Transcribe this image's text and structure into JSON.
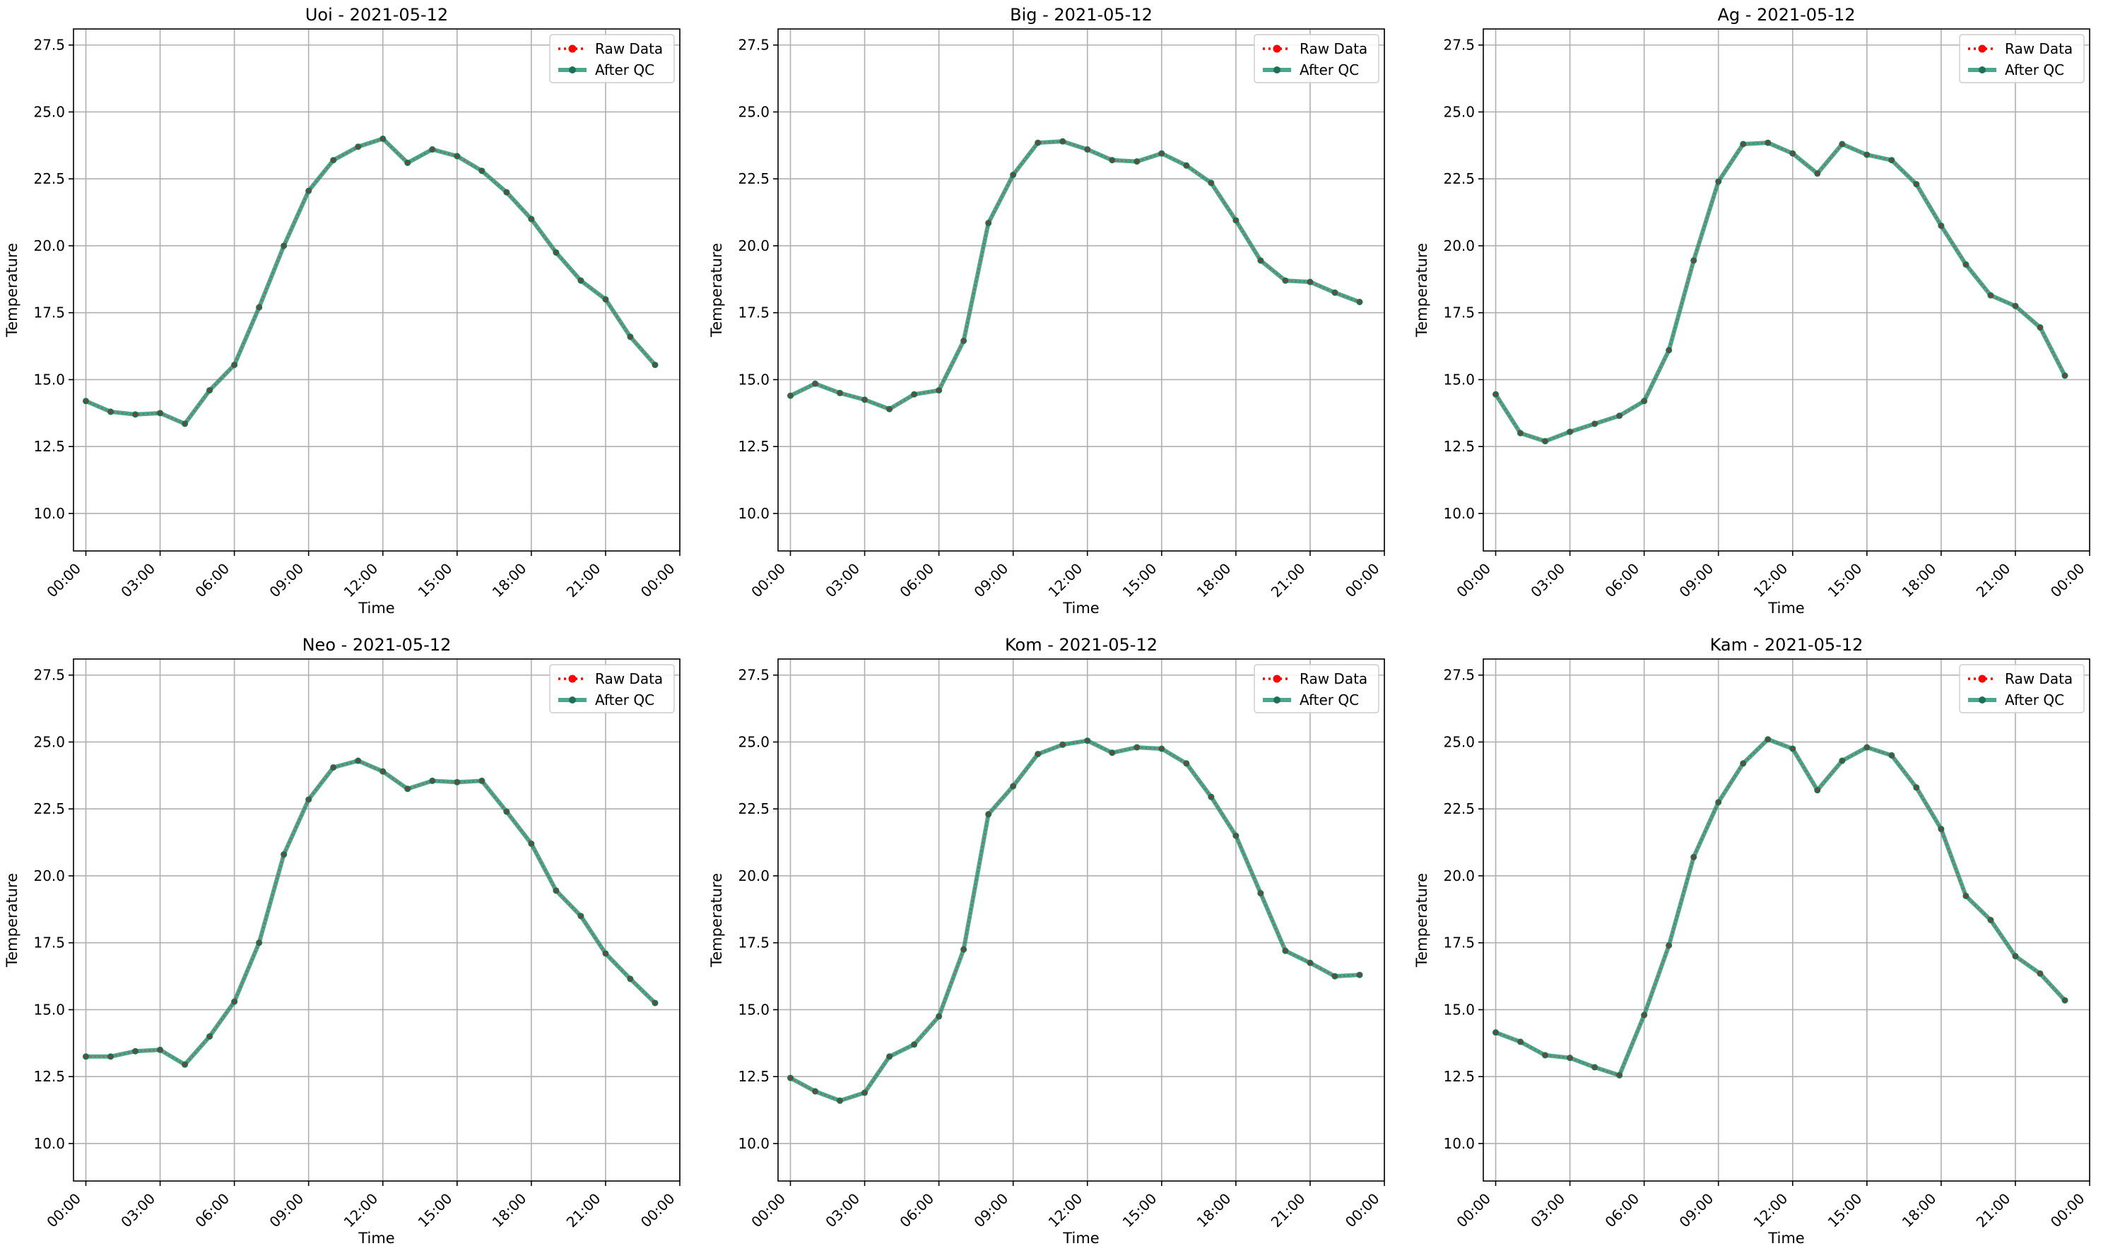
{
  "figure": {
    "colors": {
      "raw": "#ff0000",
      "qc": "#2a9878",
      "qc_marker": "#1f6f55",
      "grid": "#b0b0b0",
      "axis": "#000000"
    }
  },
  "chart_data": [
    {
      "type": "line",
      "title": "Uoi - 2021-05-12",
      "xlabel": "Time",
      "ylabel": "Temperature",
      "xlim": [
        -0.5,
        24
      ],
      "ylim": [
        8.6,
        28.1
      ],
      "x_ticks": [
        "00:00",
        "03:00",
        "06:00",
        "09:00",
        "12:00",
        "15:00",
        "18:00",
        "21:00",
        "00:00"
      ],
      "y_ticks": [
        "10.0",
        "12.5",
        "15.0",
        "17.5",
        "20.0",
        "22.5",
        "25.0",
        "27.5"
      ],
      "grid": true,
      "legend": {
        "position": "top-right",
        "entries": [
          "Raw Data",
          "After QC"
        ]
      },
      "x": [
        0,
        1,
        2,
        3,
        4,
        5,
        6,
        7,
        8,
        9,
        10,
        11,
        12,
        13,
        14,
        15,
        16,
        17,
        18,
        19,
        20,
        21,
        22,
        23
      ],
      "series": [
        {
          "name": "Raw Data",
          "values": [
            14.2,
            13.8,
            13.7,
            13.75,
            13.35,
            14.6,
            15.55,
            17.7,
            20.0,
            22.05,
            23.2,
            23.7,
            24.0,
            23.1,
            23.6,
            23.35,
            22.8,
            22.0,
            21.0,
            19.75,
            18.7,
            18.0,
            16.6,
            15.55
          ]
        },
        {
          "name": "After QC",
          "values": [
            14.2,
            13.8,
            13.7,
            13.75,
            13.35,
            14.6,
            15.55,
            17.7,
            20.0,
            22.05,
            23.2,
            23.7,
            24.0,
            23.1,
            23.6,
            23.35,
            22.8,
            22.0,
            21.0,
            19.75,
            18.7,
            18.0,
            16.6,
            15.55
          ]
        }
      ]
    },
    {
      "type": "line",
      "title": "Big - 2021-05-12",
      "xlabel": "Time",
      "ylabel": "Temperature",
      "xlim": [
        -0.5,
        24
      ],
      "ylim": [
        8.6,
        28.1
      ],
      "x_ticks": [
        "00:00",
        "03:00",
        "06:00",
        "09:00",
        "12:00",
        "15:00",
        "18:00",
        "21:00",
        "00:00"
      ],
      "y_ticks": [
        "10.0",
        "12.5",
        "15.0",
        "17.5",
        "20.0",
        "22.5",
        "25.0",
        "27.5"
      ],
      "grid": true,
      "legend": {
        "position": "top-right",
        "entries": [
          "Raw Data",
          "After QC"
        ]
      },
      "x": [
        0,
        1,
        2,
        3,
        4,
        5,
        6,
        7,
        8,
        9,
        10,
        11,
        12,
        13,
        14,
        15,
        16,
        17,
        18,
        19,
        20,
        21,
        22,
        23
      ],
      "series": [
        {
          "name": "Raw Data",
          "values": [
            14.4,
            14.85,
            14.5,
            14.25,
            13.9,
            14.45,
            14.6,
            16.45,
            20.85,
            22.65,
            23.85,
            23.9,
            23.6,
            23.2,
            23.15,
            23.45,
            23.0,
            22.35,
            20.95,
            19.45,
            18.7,
            18.65,
            18.25,
            17.9
          ]
        },
        {
          "name": "After QC",
          "values": [
            14.4,
            14.85,
            14.5,
            14.25,
            13.9,
            14.45,
            14.6,
            16.45,
            20.85,
            22.65,
            23.85,
            23.9,
            23.6,
            23.2,
            23.15,
            23.45,
            23.0,
            22.35,
            20.95,
            19.45,
            18.7,
            18.65,
            18.25,
            17.9
          ]
        }
      ]
    },
    {
      "type": "line",
      "title": "Ag - 2021-05-12",
      "xlabel": "Time",
      "ylabel": "Temperature",
      "xlim": [
        -0.5,
        24
      ],
      "ylim": [
        8.6,
        28.1
      ],
      "x_ticks": [
        "00:00",
        "03:00",
        "06:00",
        "09:00",
        "12:00",
        "15:00",
        "18:00",
        "21:00",
        "00:00"
      ],
      "y_ticks": [
        "10.0",
        "12.5",
        "15.0",
        "17.5",
        "20.0",
        "22.5",
        "25.0",
        "27.5"
      ],
      "grid": true,
      "legend": {
        "position": "top-right",
        "entries": [
          "Raw Data",
          "After QC"
        ]
      },
      "x": [
        0,
        1,
        2,
        3,
        4,
        5,
        6,
        7,
        8,
        9,
        10,
        11,
        12,
        13,
        14,
        15,
        16,
        17,
        18,
        19,
        20,
        21,
        22,
        23
      ],
      "series": [
        {
          "name": "Raw Data",
          "values": [
            14.45,
            13.0,
            12.7,
            13.05,
            13.35,
            13.65,
            14.2,
            16.1,
            19.45,
            22.4,
            23.8,
            23.85,
            23.45,
            22.7,
            23.8,
            23.4,
            23.2,
            22.3,
            20.75,
            19.3,
            18.15,
            17.75,
            16.95,
            15.15
          ]
        },
        {
          "name": "After QC",
          "values": [
            14.45,
            13.0,
            12.7,
            13.05,
            13.35,
            13.65,
            14.2,
            16.1,
            19.45,
            22.4,
            23.8,
            23.85,
            23.45,
            22.7,
            23.8,
            23.4,
            23.2,
            22.3,
            20.75,
            19.3,
            18.15,
            17.75,
            16.95,
            15.15
          ]
        }
      ]
    },
    {
      "type": "line",
      "title": "Neo - 2021-05-12",
      "xlabel": "Time",
      "ylabel": "Temperature",
      "xlim": [
        -0.5,
        24
      ],
      "ylim": [
        8.6,
        28.1
      ],
      "x_ticks": [
        "00:00",
        "03:00",
        "06:00",
        "09:00",
        "12:00",
        "15:00",
        "18:00",
        "21:00",
        "00:00"
      ],
      "y_ticks": [
        "10.0",
        "12.5",
        "15.0",
        "17.5",
        "20.0",
        "22.5",
        "25.0",
        "27.5"
      ],
      "grid": true,
      "legend": {
        "position": "top-right",
        "entries": [
          "Raw Data",
          "After QC"
        ]
      },
      "x": [
        0,
        1,
        2,
        3,
        4,
        5,
        6,
        7,
        8,
        9,
        10,
        11,
        12,
        13,
        14,
        15,
        16,
        17,
        18,
        19,
        20,
        21,
        22,
        23
      ],
      "series": [
        {
          "name": "Raw Data",
          "values": [
            13.25,
            13.25,
            13.45,
            13.5,
            12.95,
            14.0,
            15.3,
            17.5,
            20.8,
            22.85,
            24.05,
            24.3,
            23.9,
            23.25,
            23.55,
            23.5,
            23.55,
            22.4,
            21.2,
            19.45,
            18.5,
            17.1,
            16.15,
            15.25
          ]
        },
        {
          "name": "After QC",
          "values": [
            13.25,
            13.25,
            13.45,
            13.5,
            12.95,
            14.0,
            15.3,
            17.5,
            20.8,
            22.85,
            24.05,
            24.3,
            23.9,
            23.25,
            23.55,
            23.5,
            23.55,
            22.4,
            21.2,
            19.45,
            18.5,
            17.1,
            16.15,
            15.25
          ]
        }
      ]
    },
    {
      "type": "line",
      "title": "Kom - 2021-05-12",
      "xlabel": "Time",
      "ylabel": "Temperature",
      "xlim": [
        -0.5,
        24
      ],
      "ylim": [
        8.6,
        28.1
      ],
      "x_ticks": [
        "00:00",
        "03:00",
        "06:00",
        "09:00",
        "12:00",
        "15:00",
        "18:00",
        "21:00",
        "00:00"
      ],
      "y_ticks": [
        "10.0",
        "12.5",
        "15.0",
        "17.5",
        "20.0",
        "22.5",
        "25.0",
        "27.5"
      ],
      "grid": true,
      "legend": {
        "position": "top-right",
        "entries": [
          "Raw Data",
          "After QC"
        ]
      },
      "x": [
        0,
        1,
        2,
        3,
        4,
        5,
        6,
        7,
        8,
        9,
        10,
        11,
        12,
        13,
        14,
        15,
        16,
        17,
        18,
        19,
        20,
        21,
        22,
        23
      ],
      "series": [
        {
          "name": "Raw Data",
          "values": [
            12.45,
            11.95,
            11.6,
            11.9,
            13.25,
            13.7,
            14.75,
            17.25,
            22.3,
            23.35,
            24.55,
            24.9,
            25.05,
            24.6,
            24.8,
            24.75,
            24.2,
            22.95,
            21.5,
            19.35,
            17.2,
            16.75,
            16.25,
            16.3
          ]
        },
        {
          "name": "After QC",
          "values": [
            12.45,
            11.95,
            11.6,
            11.9,
            13.25,
            13.7,
            14.75,
            17.25,
            22.3,
            23.35,
            24.55,
            24.9,
            25.05,
            24.6,
            24.8,
            24.75,
            24.2,
            22.95,
            21.5,
            19.35,
            17.2,
            16.75,
            16.25,
            16.3
          ]
        }
      ]
    },
    {
      "type": "line",
      "title": "Kam - 2021-05-12",
      "xlabel": "Time",
      "ylabel": "Temperature",
      "xlim": [
        -0.5,
        24
      ],
      "ylim": [
        8.6,
        28.1
      ],
      "x_ticks": [
        "00:00",
        "03:00",
        "06:00",
        "09:00",
        "12:00",
        "15:00",
        "18:00",
        "21:00",
        "00:00"
      ],
      "y_ticks": [
        "10.0",
        "12.5",
        "15.0",
        "17.5",
        "20.0",
        "22.5",
        "25.0",
        "27.5"
      ],
      "grid": true,
      "legend": {
        "position": "top-right",
        "entries": [
          "Raw Data",
          "After QC"
        ]
      },
      "x": [
        0,
        1,
        2,
        3,
        4,
        5,
        6,
        7,
        8,
        9,
        10,
        11,
        12,
        13,
        14,
        15,
        16,
        17,
        18,
        19,
        20,
        21,
        22,
        23
      ],
      "series": [
        {
          "name": "Raw Data",
          "values": [
            14.15,
            13.8,
            13.3,
            13.2,
            12.85,
            12.55,
            14.8,
            17.4,
            20.7,
            22.75,
            24.2,
            25.1,
            24.75,
            23.2,
            24.3,
            24.8,
            24.5,
            23.3,
            21.75,
            19.25,
            18.35,
            17.0,
            16.35,
            15.35
          ]
        },
        {
          "name": "After QC",
          "values": [
            14.15,
            13.8,
            13.3,
            13.2,
            12.85,
            12.55,
            14.8,
            17.4,
            20.7,
            22.75,
            24.2,
            25.1,
            24.75,
            23.2,
            24.3,
            24.8,
            24.5,
            23.3,
            21.75,
            19.25,
            18.35,
            17.0,
            16.35,
            15.35
          ]
        }
      ]
    }
  ]
}
